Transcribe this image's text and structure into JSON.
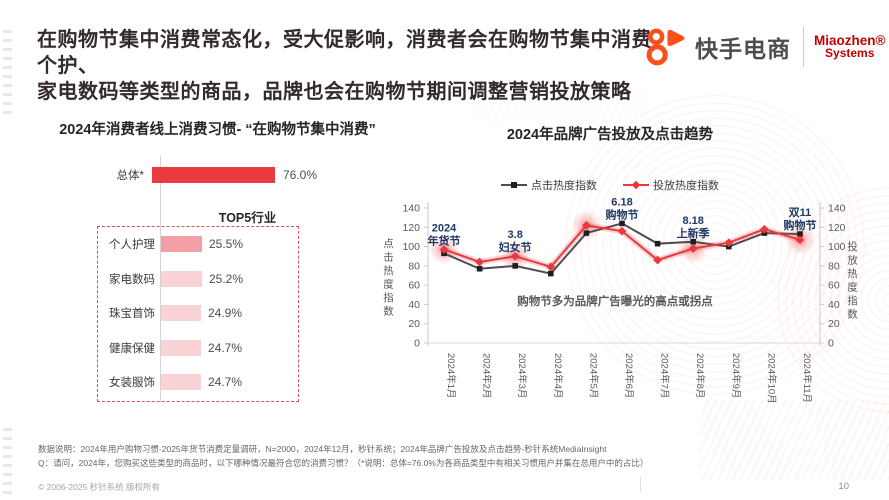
{
  "header": {
    "title_line1": "在购物节集中消费常态化，受大促影响，消费者会在购物节集中消费个护、",
    "title_line2": "家电数码等类型的商品，品牌也会在购物节期间调整营销投放策略",
    "logo": {
      "kuaishou_text": "快手电商",
      "miaozhen_line1": "Miaozhen®",
      "miaozhen_line2": "Systems"
    }
  },
  "colors": {
    "accent_red": "#ea3b40",
    "line_red": "#e8393e",
    "line_dark": "#4d4d4d",
    "marker_dark": "#1f1f1f",
    "annotation_navy": "#1f3864",
    "kuaishou_orange": "#fb4f1c",
    "miaozhen_red": "#c00000",
    "bar_pink_highlight": "#f2a0a5",
    "bar_pink_light": "#f9d2d5"
  },
  "chart_data": [
    {
      "type": "bar",
      "title": "2024年消费者线上消费习惯- “在购物节集中消费”",
      "overall": {
        "label": "总体*",
        "value": 76.0,
        "display": "76.0%"
      },
      "group_title": "TOP5行业",
      "categories": [
        "个人护理",
        "家电数码",
        "珠宝首饰",
        "健康保健",
        "女装服饰"
      ],
      "values": [
        25.5,
        25.2,
        24.9,
        24.7,
        24.7
      ],
      "value_labels": [
        "25.5%",
        "25.2%",
        "24.9%",
        "24.7%",
        "24.7%"
      ],
      "unit": "%"
    },
    {
      "type": "line",
      "title": "2024年品牌广告投放及点击趋势",
      "categories": [
        "2024年1月",
        "2024年2月",
        "2024年3月",
        "2024年4月",
        "2024年5月",
        "2024年6月",
        "2024年7月",
        "2024年8月",
        "2024年9月",
        "2024年10月",
        "2024年11月"
      ],
      "series": [
        {
          "name": "点击热度指数",
          "color": "#4d4d4d",
          "marker": "square",
          "values": [
            93,
            77,
            80,
            72,
            114,
            124,
            103,
            105,
            100,
            114,
            113
          ]
        },
        {
          "name": "投放热度指数",
          "color": "#e8393e",
          "marker": "diamond",
          "values": [
            97,
            84,
            90,
            79,
            122,
            116,
            86,
            98,
            104,
            118,
            107
          ]
        }
      ],
      "ylim": [
        0,
        140
      ],
      "ytick_step": 20,
      "left_axis_label": "点击热度指数",
      "right_axis_label": "投放热度指数",
      "annotations": [
        {
          "month_index": 0,
          "lines": [
            "2024",
            "年货节"
          ]
        },
        {
          "month_index": 2,
          "lines": [
            "3.8",
            "妇女节"
          ]
        },
        {
          "month_index": 5,
          "lines": [
            "6.18",
            "购物节"
          ]
        },
        {
          "month_index": 7,
          "lines": [
            "8.18",
            "上新季"
          ]
        },
        {
          "month_index": 10,
          "lines": [
            "双11",
            "购物节"
          ]
        }
      ],
      "highlight_months": [
        0,
        2,
        4,
        7,
        10
      ],
      "center_note": "购物节多为品牌广告曝光的高点或拐点",
      "legend_position": "top",
      "grid": false
    }
  ],
  "footnotes": {
    "line1": "数据说明：2024年用户购物习惯-2025年货节消费定量调研，N=2000，2024年12月，秒针系统；2024年品牌广告投放及点击趋势-秒针系统MediaInsight",
    "line2": "Q：请问，2024年，您购买这些类型的商品时，以下哪种情况最符合您的消费习惯？（*说明：总体=76.0%为各商品类型中有相关习惯用户并集在总用户中的占比）"
  },
  "footer": {
    "copyright": "© 2006-2025 秒针系统 版权所有",
    "page_number": "10"
  }
}
